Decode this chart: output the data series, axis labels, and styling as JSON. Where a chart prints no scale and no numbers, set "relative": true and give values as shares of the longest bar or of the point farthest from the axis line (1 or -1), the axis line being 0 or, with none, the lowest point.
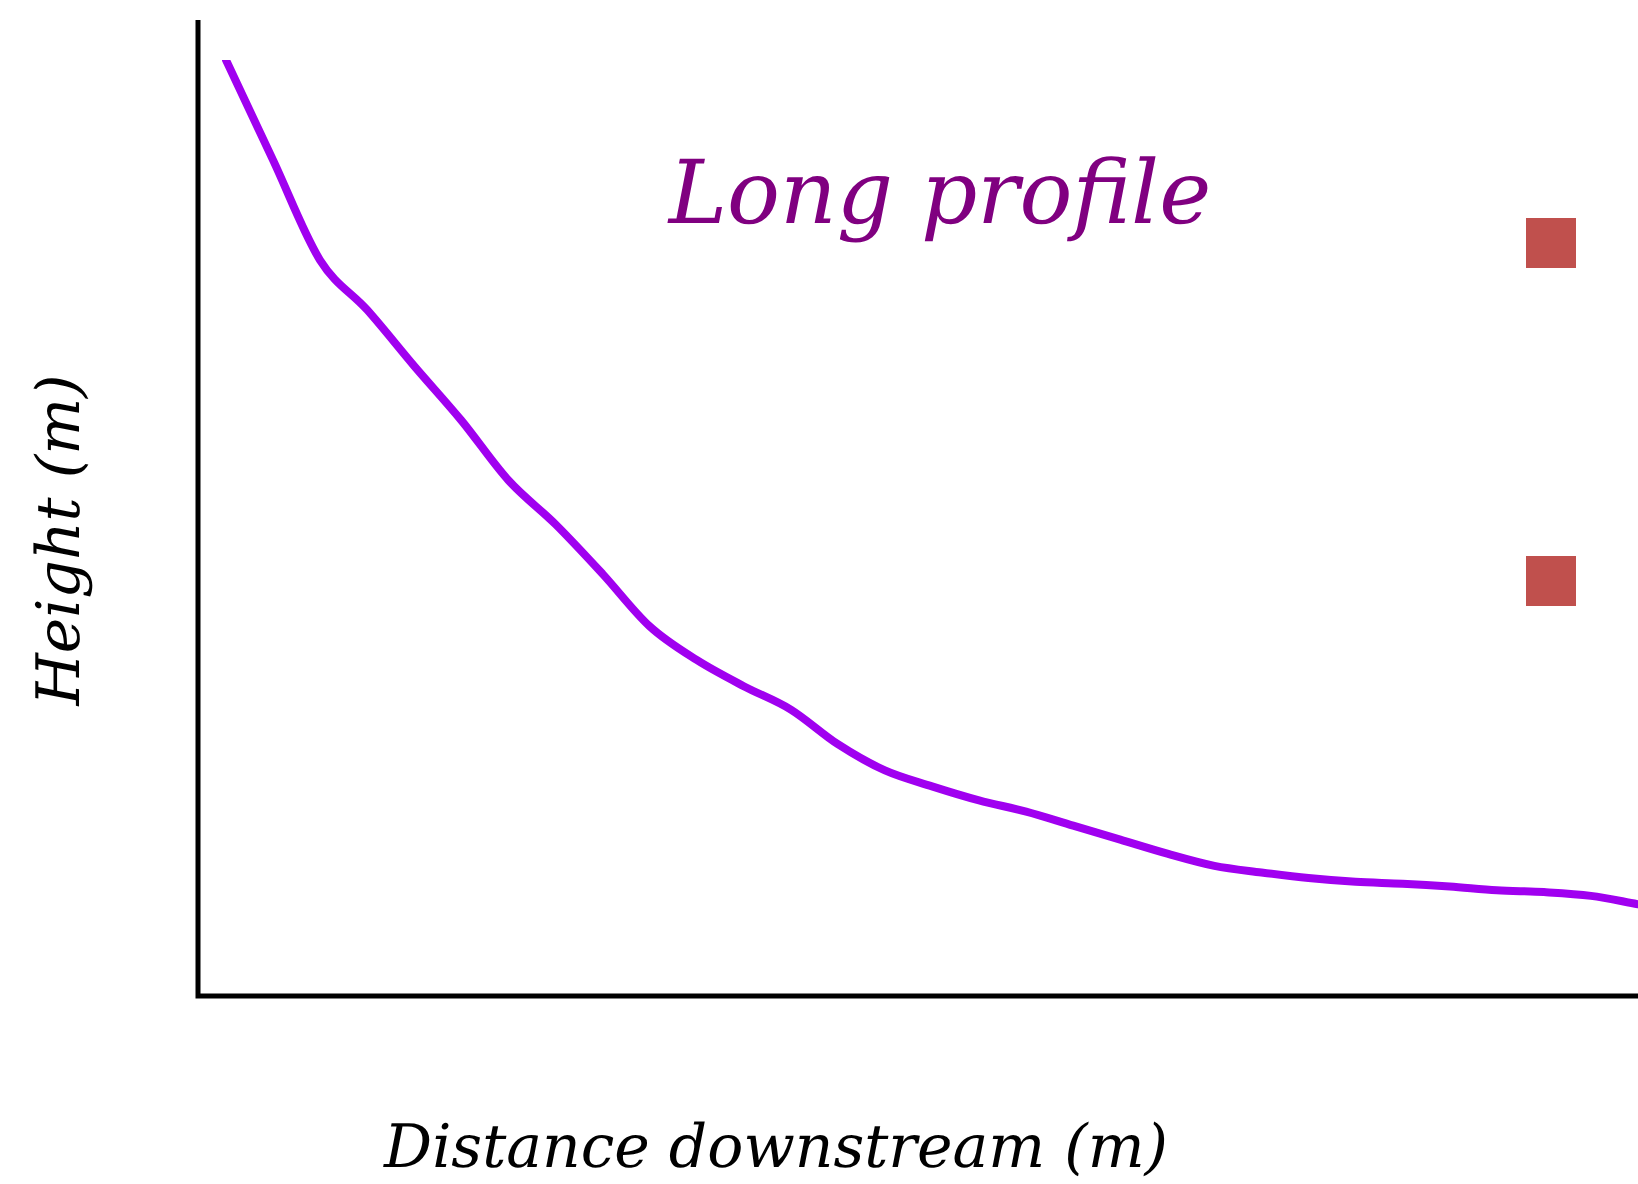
{
  "chart_data": {
    "type": "line",
    "title": "Long profile",
    "xlabel": "Distance downstream (m)",
    "ylabel": "Height (m)",
    "relative": true,
    "legend": false,
    "marker": "none",
    "categories": [
      null,
      null,
      null,
      null,
      null,
      null,
      null,
      null,
      null,
      null,
      null,
      null,
      null,
      null,
      null,
      null,
      null,
      null,
      null,
      null,
      null,
      null,
      null,
      null,
      null,
      null,
      null,
      null,
      null,
      null,
      null
    ],
    "series": [
      {
        "color": "#a000f0",
        "values": [
          1.0,
          0.893,
          0.786,
          0.733,
          0.673,
          0.615,
          0.551,
          0.504,
          0.451,
          0.395,
          0.359,
          0.331,
          0.306,
          0.269,
          0.241,
          0.224,
          0.209,
          0.197,
          0.182,
          0.167,
          0.152,
          0.139,
          0.132,
          0.126,
          0.122,
          0.12,
          0.117,
          0.113,
          0.111,
          0.107,
          0.098
        ]
      }
    ]
  }
}
